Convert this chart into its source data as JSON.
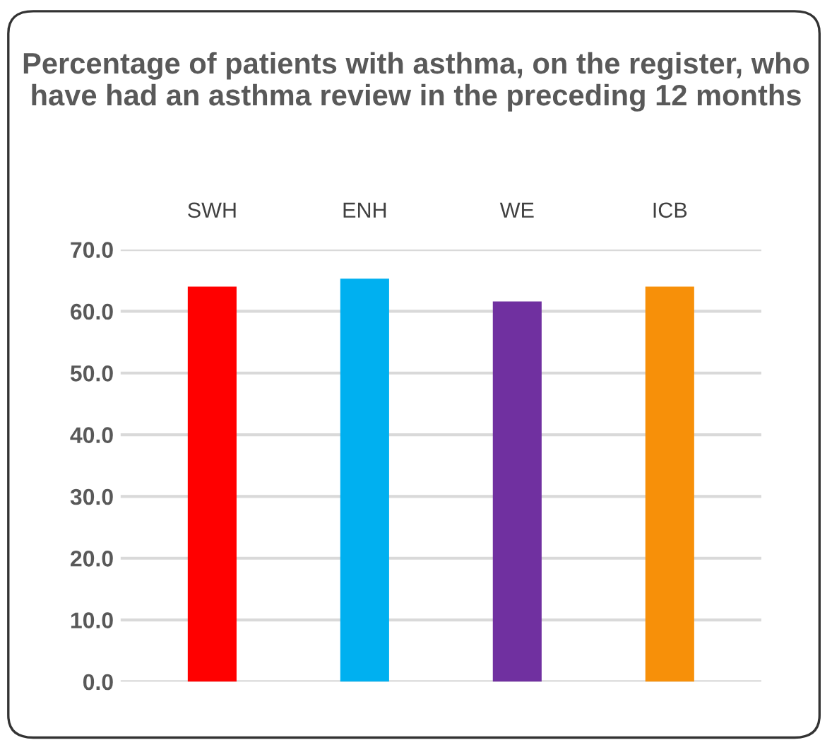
{
  "chart_data": {
    "type": "bar",
    "title": "Percentage of patients with asthma, on the register, who have had an asthma review in the preceding 12 months",
    "categories": [
      "SWH",
      "ENH",
      "WE",
      "ICB"
    ],
    "values": [
      64.0,
      65.3,
      61.6,
      64.0
    ],
    "colors": [
      "#ff0000",
      "#00b0f0",
      "#7030a0",
      "#f79009"
    ],
    "ylim": [
      0,
      70
    ],
    "yticks": [
      {
        "value": 0,
        "label": "0.0"
      },
      {
        "value": 10,
        "label": "10.0"
      },
      {
        "value": 20,
        "label": "20.0"
      },
      {
        "value": 30,
        "label": "30.0"
      },
      {
        "value": 40,
        "label": "40.0"
      },
      {
        "value": 50,
        "label": "50.0"
      },
      {
        "value": 60,
        "label": "60.0"
      },
      {
        "value": 70,
        "label": "70.0"
      }
    ],
    "grid": "y"
  }
}
